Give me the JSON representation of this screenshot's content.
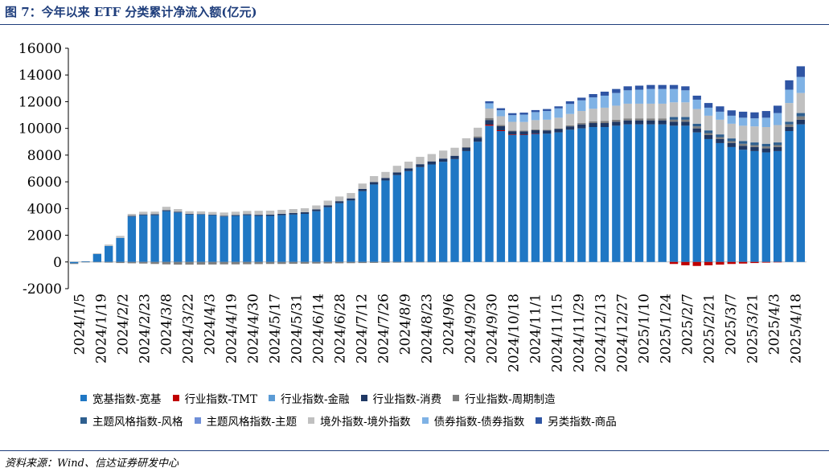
{
  "header": {
    "title": "图 7：今年以来 ETF 分类累计净流入额(亿元)"
  },
  "footer": {
    "source": "资料来源：Wind、信达证券研发中心"
  },
  "chart_data": {
    "type": "bar",
    "stacked": true,
    "ylim": [
      -2000,
      16000
    ],
    "yticks": [
      -2000,
      0,
      2000,
      4000,
      6000,
      8000,
      10000,
      12000,
      14000,
      16000
    ],
    "xtick_labels": [
      "2024/1/5",
      "2024/1/19",
      "2024/2/2",
      "2024/2/23",
      "2024/3/8",
      "2024/3/22",
      "2024/4/3",
      "2024/4/19",
      "2024/4/30",
      "2024/5/17",
      "2024/5/31",
      "2024/6/14",
      "2024/6/28",
      "2024/7/12",
      "2024/7/26",
      "2024/8/9",
      "2024/8/23",
      "2024/9/6",
      "2024/9/20",
      "2024/9/30",
      "2024/10/18",
      "2024/11/1",
      "2024/11/15",
      "2024/11/29",
      "2024/12/13",
      "2024/12/27",
      "2025/1/10",
      "2025/1/24",
      "2025/2/7",
      "2025/2/21",
      "2025/3/7",
      "2025/3/21",
      "2025/4/3",
      "2025/4/18"
    ],
    "legend_position": "bottom",
    "grid": false,
    "series": [
      {
        "name": "宽基指数-宽基",
        "color": "#1f77c4",
        "values": [
          -100,
          50,
          600,
          1200,
          1800,
          3400,
          3500,
          3500,
          3800,
          3700,
          3550,
          3550,
          3500,
          3400,
          3450,
          3500,
          3450,
          3450,
          3500,
          3550,
          3600,
          3800,
          4100,
          4400,
          4600,
          5300,
          5800,
          6100,
          6500,
          6800,
          7100,
          7300,
          7500,
          7700,
          8300,
          9000,
          10200,
          9800,
          9500,
          9500,
          9600,
          9600,
          9700,
          9900,
          10000,
          10100,
          10100,
          10200,
          10300,
          10300,
          10300,
          10300,
          10200,
          10200,
          9700,
          9200,
          8900,
          8600,
          8400,
          8300,
          8200,
          8300,
          9800,
          10300
        ]
      },
      {
        "name": "行业指数-TMT",
        "color": "#c00000",
        "values": [
          0,
          0,
          0,
          0,
          0,
          0,
          0,
          0,
          0,
          0,
          0,
          0,
          0,
          0,
          0,
          0,
          0,
          0,
          0,
          0,
          0,
          0,
          0,
          0,
          0,
          0,
          0,
          0,
          0,
          0,
          0,
          0,
          0,
          0,
          0,
          0,
          80,
          60,
          40,
          30,
          20,
          0,
          0,
          0,
          0,
          0,
          0,
          0,
          0,
          0,
          0,
          0,
          -150,
          -250,
          -300,
          -250,
          -200,
          -150,
          -120,
          -80,
          -50,
          -30,
          0,
          0
        ]
      },
      {
        "name": "行业指数-金融",
        "color": "#5b9bd5",
        "values": [
          0,
          0,
          0,
          0,
          0,
          0,
          0,
          0,
          0,
          0,
          0,
          0,
          0,
          0,
          0,
          0,
          0,
          0,
          0,
          0,
          0,
          0,
          0,
          0,
          0,
          0,
          0,
          0,
          0,
          0,
          0,
          0,
          0,
          0,
          0,
          0,
          0,
          0,
          0,
          0,
          0,
          0,
          0,
          0,
          0,
          0,
          0,
          0,
          0,
          0,
          0,
          0,
          0,
          0,
          0,
          0,
          0,
          0,
          0,
          0,
          0,
          0,
          0,
          0
        ]
      },
      {
        "name": "行业指数-消费",
        "color": "#1f3864",
        "values": [
          0,
          0,
          0,
          0,
          0,
          50,
          60,
          70,
          80,
          60,
          50,
          40,
          40,
          50,
          60,
          70,
          80,
          90,
          100,
          110,
          120,
          130,
          140,
          150,
          160,
          170,
          180,
          190,
          200,
          210,
          220,
          230,
          240,
          250,
          260,
          300,
          350,
          300,
          250,
          250,
          250,
          250,
          250,
          250,
          300,
          300,
          300,
          300,
          300,
          300,
          300,
          300,
          300,
          300,
          300,
          300,
          300,
          300,
          300,
          300,
          300,
          300,
          300,
          350
        ]
      },
      {
        "name": "行业指数-周期制造",
        "color": "#7f7f7f",
        "values": [
          -50,
          -20,
          -30,
          -50,
          -80,
          -100,
          -120,
          -150,
          -180,
          -200,
          -200,
          -200,
          -190,
          -180,
          -180,
          -170,
          -160,
          -150,
          -150,
          -140,
          -130,
          -120,
          -110,
          -100,
          -90,
          -80,
          -70,
          -60,
          -50,
          -40,
          -30,
          -20,
          -10,
          0,
          50,
          100,
          150,
          100,
          50,
          50,
          50,
          50,
          50,
          80,
          100,
          120,
          150,
          150,
          150,
          150,
          150,
          150,
          150,
          150,
          150,
          150,
          150,
          150,
          150,
          150,
          150,
          150,
          200,
          250
        ]
      },
      {
        "name": "主题风格指数-风格",
        "color": "#2e5f8f",
        "values": [
          0,
          0,
          0,
          0,
          0,
          0,
          0,
          0,
          0,
          0,
          0,
          0,
          0,
          0,
          0,
          0,
          0,
          0,
          0,
          0,
          0,
          0,
          0,
          0,
          0,
          0,
          0,
          0,
          0,
          0,
          0,
          0,
          0,
          0,
          0,
          0,
          0,
          0,
          0,
          0,
          0,
          0,
          0,
          0,
          0,
          0,
          0,
          0,
          0,
          0,
          0,
          0,
          200,
          200,
          200,
          200,
          200,
          200,
          200,
          200,
          200,
          200,
          200,
          250
        ]
      },
      {
        "name": "主题风格指数-主题",
        "color": "#6f8fd8",
        "values": [
          0,
          0,
          0,
          0,
          0,
          0,
          0,
          0,
          0,
          0,
          0,
          0,
          0,
          0,
          0,
          0,
          0,
          0,
          0,
          0,
          0,
          0,
          0,
          0,
          0,
          0,
          0,
          0,
          0,
          0,
          0,
          0,
          0,
          0,
          0,
          0,
          0,
          0,
          0,
          0,
          0,
          0,
          0,
          0,
          0,
          0,
          0,
          0,
          0,
          0,
          0,
          0,
          0,
          0,
          0,
          0,
          0,
          0,
          0,
          0,
          0,
          0,
          0,
          0
        ]
      },
      {
        "name": "境外指数-境外指数",
        "color": "#c0c0c0",
        "values": [
          0,
          0,
          50,
          100,
          150,
          150,
          200,
          200,
          250,
          200,
          200,
          200,
          200,
          250,
          250,
          250,
          300,
          300,
          300,
          300,
          300,
          300,
          350,
          350,
          400,
          400,
          450,
          450,
          500,
          500,
          550,
          550,
          600,
          600,
          650,
          650,
          700,
          650,
          650,
          650,
          700,
          750,
          800,
          850,
          900,
          950,
          1000,
          1050,
          1100,
          1100,
          1100,
          1100,
          1100,
          1100,
          1100,
          1100,
          1100,
          1100,
          1150,
          1200,
          1250,
          1300,
          1400,
          1500
        ]
      },
      {
        "name": "债券指数-债券指数",
        "color": "#7fb2e5",
        "values": [
          0,
          0,
          0,
          0,
          0,
          0,
          0,
          0,
          0,
          0,
          0,
          0,
          0,
          0,
          0,
          0,
          0,
          0,
          0,
          0,
          0,
          0,
          0,
          0,
          0,
          0,
          0,
          0,
          0,
          0,
          0,
          0,
          0,
          0,
          0,
          0,
          400,
          450,
          500,
          550,
          600,
          650,
          700,
          750,
          800,
          850,
          900,
          950,
          1000,
          1050,
          1100,
          1100,
          1000,
          900,
          700,
          600,
          600,
          600,
          600,
          600,
          700,
          900,
          1000,
          1200
        ]
      },
      {
        "name": "另类指数-商品",
        "color": "#2f55a4",
        "values": [
          0,
          0,
          0,
          0,
          0,
          0,
          0,
          0,
          0,
          0,
          0,
          0,
          0,
          0,
          0,
          0,
          0,
          0,
          0,
          0,
          0,
          0,
          0,
          0,
          0,
          0,
          0,
          0,
          0,
          0,
          0,
          0,
          0,
          0,
          0,
          0,
          150,
          150,
          150,
          150,
          150,
          150,
          150,
          200,
          200,
          250,
          300,
          300,
          300,
          300,
          300,
          300,
          300,
          300,
          300,
          350,
          400,
          400,
          450,
          450,
          500,
          550,
          700,
          800
        ]
      }
    ]
  }
}
